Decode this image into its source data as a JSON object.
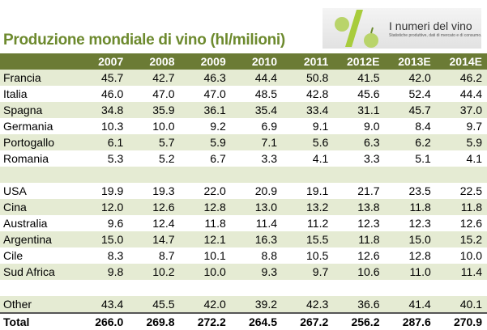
{
  "header": {
    "title": "Produzione mondiale di vino (hl/milioni)",
    "logo_title": "I numeri del vino",
    "logo_subtitle": "Statistiche produttive, dati di mercato e di consumo."
  },
  "table": {
    "columns": [
      "2007",
      "2008",
      "2009",
      "2010",
      "2011",
      "2012E",
      "2013E",
      "2014E"
    ],
    "sections": [
      {
        "rows": [
          {
            "label": "Francia",
            "values": [
              "45.7",
              "42.7",
              "46.3",
              "44.4",
              "50.8",
              "41.5",
              "42.0",
              "46.2"
            ]
          },
          {
            "label": "Italia",
            "values": [
              "46.0",
              "47.0",
              "47.0",
              "48.5",
              "42.8",
              "45.6",
              "52.4",
              "44.4"
            ]
          },
          {
            "label": "Spagna",
            "values": [
              "34.8",
              "35.9",
              "36.1",
              "35.4",
              "33.4",
              "31.1",
              "45.7",
              "37.0"
            ]
          },
          {
            "label": "Germania",
            "values": [
              "10.3",
              "10.0",
              "9.2",
              "6.9",
              "9.1",
              "9.0",
              "8.4",
              "9.7"
            ]
          },
          {
            "label": "Portogallo",
            "values": [
              "6.1",
              "5.7",
              "5.9",
              "7.1",
              "5.6",
              "6.3",
              "6.2",
              "5.9"
            ]
          },
          {
            "label": "Romania",
            "values": [
              "5.3",
              "5.2",
              "6.7",
              "3.3",
              "4.1",
              "3.3",
              "5.1",
              "4.1"
            ]
          }
        ]
      },
      {
        "rows": [
          {
            "label": "USA",
            "values": [
              "19.9",
              "19.3",
              "22.0",
              "20.9",
              "19.1",
              "21.7",
              "23.5",
              "22.5"
            ]
          },
          {
            "label": "Cina",
            "values": [
              "12.0",
              "12.6",
              "12.8",
              "13.0",
              "13.2",
              "13.8",
              "11.8",
              "11.8"
            ]
          },
          {
            "label": "Australia",
            "values": [
              "9.6",
              "12.4",
              "11.8",
              "11.4",
              "11.2",
              "12.3",
              "12.3",
              "12.6"
            ]
          },
          {
            "label": "Argentina",
            "values": [
              "15.0",
              "14.7",
              "12.1",
              "16.3",
              "15.5",
              "11.8",
              "15.0",
              "15.2"
            ]
          },
          {
            "label": "Cile",
            "values": [
              "8.3",
              "8.7",
              "10.1",
              "8.8",
              "10.5",
              "12.6",
              "12.8",
              "10.0"
            ]
          },
          {
            "label": "Sud Africa",
            "values": [
              "9.8",
              "10.2",
              "10.0",
              "9.3",
              "9.7",
              "10.6",
              "11.0",
              "11.4"
            ]
          }
        ]
      },
      {
        "rows": [
          {
            "label": "Other",
            "values": [
              "43.4",
              "45.5",
              "42.0",
              "39.2",
              "42.3",
              "36.6",
              "41.4",
              "40.1"
            ]
          }
        ]
      }
    ],
    "total": {
      "label": "Total",
      "values": [
        "266.0",
        "269.8",
        "272.2",
        "264.5",
        "267.2",
        "256.2",
        "287.6",
        "270.9"
      ]
    }
  }
}
